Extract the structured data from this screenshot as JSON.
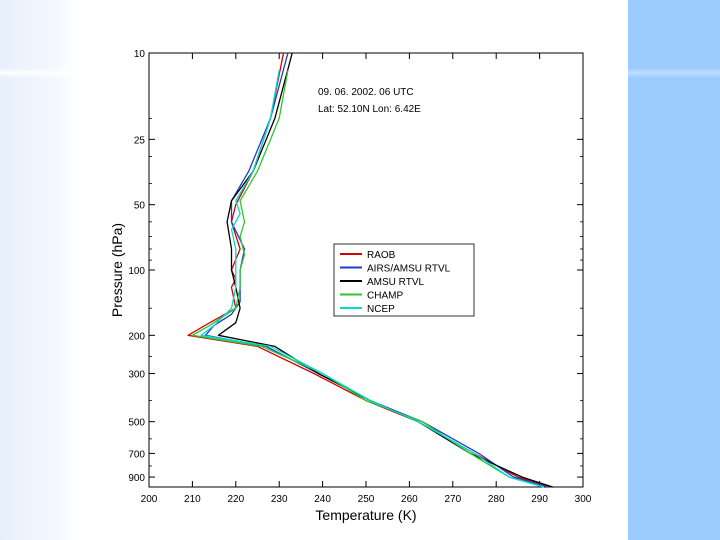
{
  "slide": {
    "left_band_color": "#e6f0fb",
    "right_band_color": "#9ccbff"
  },
  "chart_data": {
    "type": "line",
    "xlabel": "Temperature (K)",
    "ylabel": "Pressure (hPa)",
    "xlim": [
      200,
      300
    ],
    "ylim": [
      10,
      1000
    ],
    "y_scale": "log",
    "y_inverted": true,
    "x_ticks": [
      200,
      210,
      220,
      230,
      240,
      250,
      260,
      270,
      280,
      290,
      300
    ],
    "y_ticks": [
      10,
      25,
      50,
      100,
      200,
      300,
      500,
      700,
      900
    ],
    "grid": false,
    "annotations": [
      "09. 06. 2002. 06 UTC",
      "Lat: 52.10N Lon: 6.42E"
    ],
    "legend_position": "center-right",
    "series": [
      {
        "name": "RAOB",
        "color": "#d40000",
        "points": [
          [
            293,
            1000
          ],
          [
            285,
            900
          ],
          [
            275,
            700
          ],
          [
            262,
            500
          ],
          [
            250,
            400
          ],
          [
            238,
            300
          ],
          [
            225,
            225
          ],
          [
            209,
            200
          ],
          [
            214,
            175
          ],
          [
            220,
            150
          ],
          [
            219,
            120
          ],
          [
            220,
            110
          ],
          [
            219,
            100
          ],
          [
            221,
            80
          ],
          [
            219,
            60
          ],
          [
            220,
            50
          ],
          [
            224,
            35
          ],
          [
            228,
            20
          ],
          [
            231,
            10
          ]
        ]
      },
      {
        "name": "AIRS/AMSU RTVL",
        "color": "#1f3cc8",
        "points": [
          [
            292,
            1000
          ],
          [
            284,
            900
          ],
          [
            276,
            700
          ],
          [
            263,
            500
          ],
          [
            251,
            400
          ],
          [
            239,
            300
          ],
          [
            227,
            225
          ],
          [
            213,
            200
          ],
          [
            215,
            180
          ],
          [
            219,
            160
          ],
          [
            221,
            140
          ],
          [
            221,
            120
          ],
          [
            221,
            100
          ],
          [
            222,
            80
          ],
          [
            219,
            60
          ],
          [
            219,
            48
          ],
          [
            223,
            35
          ],
          [
            228,
            20
          ],
          [
            232,
            10
          ]
        ]
      },
      {
        "name": "AMSU RTVL",
        "color": "#000000",
        "points": [
          [
            293,
            1000
          ],
          [
            286,
            900
          ],
          [
            274,
            700
          ],
          [
            262,
            500
          ],
          [
            251,
            400
          ],
          [
            239,
            300
          ],
          [
            229,
            225
          ],
          [
            216,
            200
          ],
          [
            220,
            175
          ],
          [
            221,
            150
          ],
          [
            220,
            120
          ],
          [
            219,
            100
          ],
          [
            219,
            80
          ],
          [
            218,
            60
          ],
          [
            219,
            48
          ],
          [
            224,
            35
          ],
          [
            229,
            20
          ],
          [
            233,
            10
          ]
        ]
      },
      {
        "name": "CHAMP",
        "color": "#2fc62f",
        "points": [
          [
            291,
            1000
          ],
          [
            283,
            900
          ],
          [
            274,
            700
          ],
          [
            263,
            500
          ],
          [
            250,
            400
          ],
          [
            240,
            300
          ],
          [
            226,
            225
          ],
          [
            210,
            200
          ],
          [
            214,
            180
          ],
          [
            220,
            150
          ],
          [
            221,
            120
          ],
          [
            221,
            100
          ],
          [
            222,
            85
          ],
          [
            221,
            70
          ],
          [
            222,
            60
          ],
          [
            221,
            48
          ],
          [
            225,
            35
          ],
          [
            230,
            20
          ],
          [
            232,
            12
          ]
        ]
      },
      {
        "name": "NCEP",
        "color": "#00dccc",
        "points": [
          [
            291,
            1000
          ],
          [
            283,
            900
          ],
          [
            275,
            700
          ],
          [
            262,
            500
          ],
          [
            251,
            400
          ],
          [
            240,
            300
          ],
          [
            228,
            225
          ],
          [
            212,
            200
          ],
          [
            215,
            180
          ],
          [
            219,
            150
          ],
          [
            220,
            120
          ],
          [
            220,
            100
          ],
          [
            220,
            80
          ],
          [
            219,
            65
          ],
          [
            221,
            55
          ],
          [
            220,
            48
          ],
          [
            224,
            35
          ],
          [
            228,
            20
          ],
          [
            230,
            12
          ]
        ]
      }
    ]
  }
}
